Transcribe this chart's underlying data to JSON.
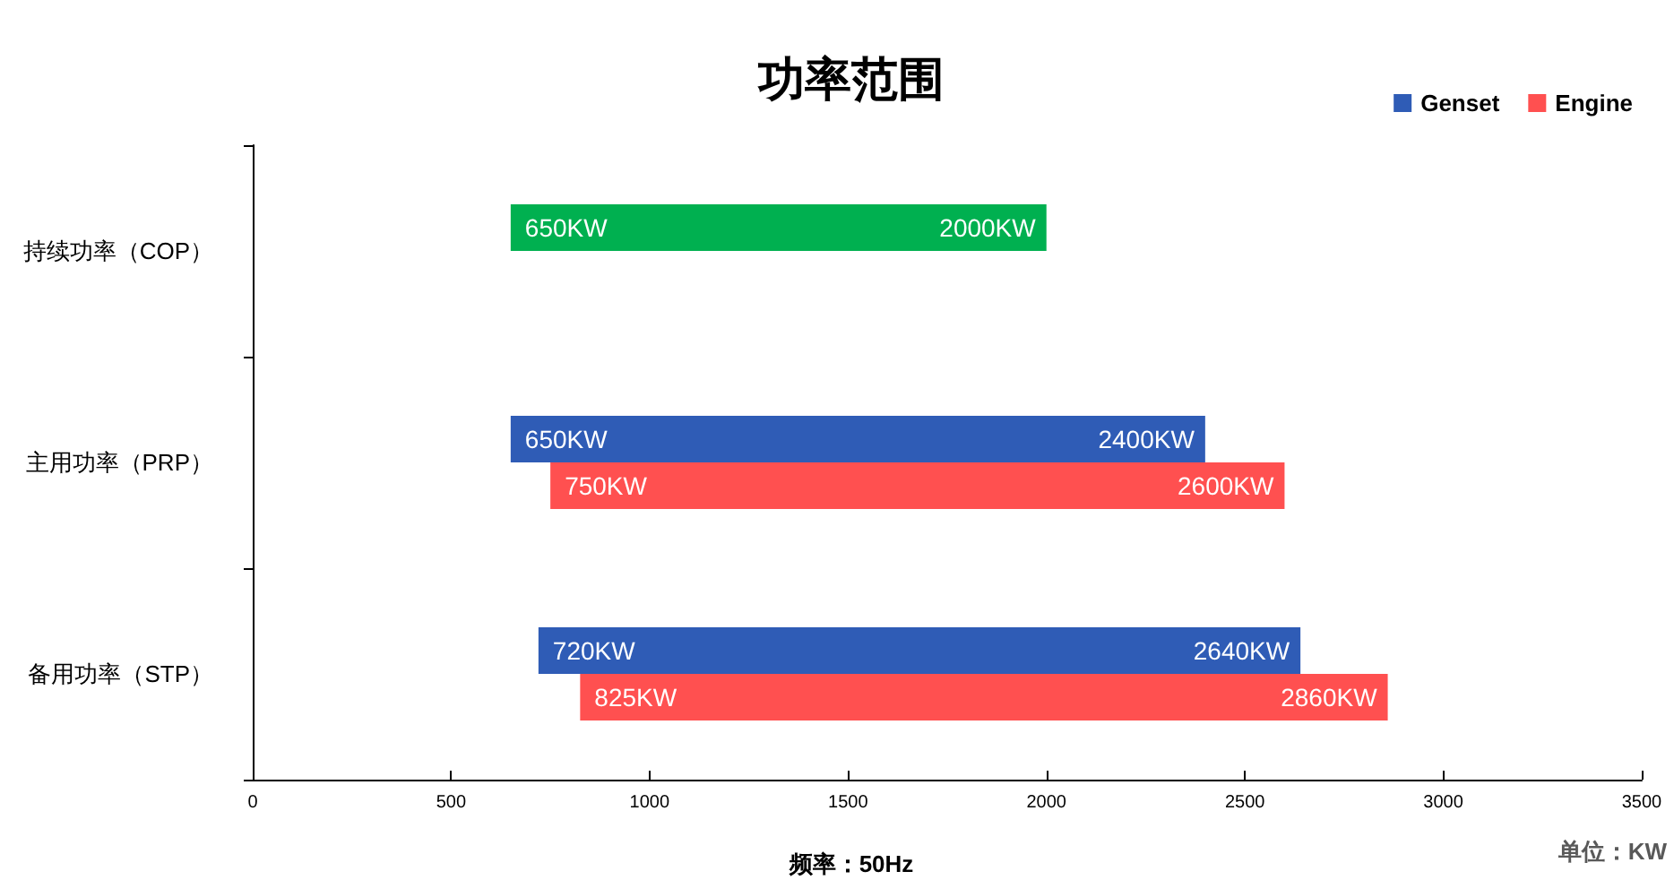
{
  "chart_data": {
    "type": "bar",
    "orientation": "horizontal",
    "title": "功率范围",
    "xlabel": "频率：50Hz",
    "categories": [
      "持续功率（COP）",
      "主用功率（PRP）",
      "备用功率（STP）"
    ],
    "series": [
      {
        "name": "Genset",
        "color": "#2f5cb6",
        "colors": [
          "#00b050",
          "#2f5cb6",
          "#2f5cb6"
        ],
        "base": [
          650,
          650,
          720
        ],
        "values": [
          1350,
          1750,
          1920
        ]
      },
      {
        "name": "Engine",
        "color": "#ff5050",
        "base": [
          null,
          750,
          825
        ],
        "values": [
          null,
          1850,
          2035
        ]
      }
    ],
    "xlim": [
      0,
      3500
    ],
    "xticks": [
      0,
      500,
      1000,
      1500,
      2000,
      2500,
      3000,
      3500
    ],
    "grid": false,
    "legend": "top right",
    "annotations": [
      {
        "text": "650KW",
        "x": 650,
        "y": "持续功率（COP）"
      },
      {
        "text": "2000KW",
        "x": 2000,
        "y": "持续功率（COP）"
      },
      {
        "text": "650KW",
        "x": 650,
        "y": "主用功率（PRP）"
      },
      {
        "text": "2400KW",
        "x": 2400,
        "y": "主用功率（PRP）"
      },
      {
        "text": "750KW",
        "x": 750,
        "y": "主用功率（PRP）"
      },
      {
        "text": "2600KW",
        "x": 2600,
        "y": "主用功率（PRP）"
      },
      {
        "text": "720KW",
        "x": 720,
        "y": "备用功率（STP）"
      },
      {
        "text": "2640KW",
        "x": 2640,
        "y": "备用功率（STP）"
      },
      {
        "text": "825KW",
        "x": 825,
        "y": "备用功率（STP）"
      },
      {
        "text": "2860KW",
        "x": 2860,
        "y": "备用功率（STP）"
      },
      "单位：KW"
    ]
  }
}
